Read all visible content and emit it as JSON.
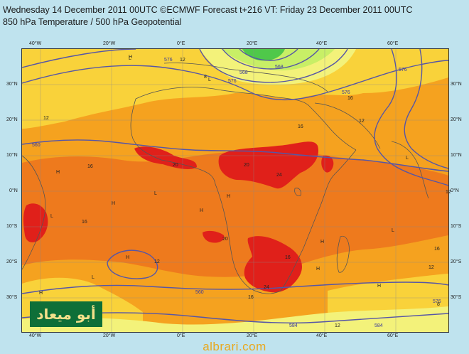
{
  "header": {
    "line1": "Wednesday 14 December 2011 00UTC ©ECMWF Forecast t+216 VT: Friday 23 December 2011 00UTC",
    "line2": "850 hPa Temperature / 500 hPa Geopotential"
  },
  "map": {
    "lon_labels": [
      "40°W",
      "20°W",
      "0°E",
      "20°E",
      "40°E",
      "60°E"
    ],
    "lat_labels": [
      "30°N",
      "20°N",
      "10°N",
      "0°N",
      "10°S",
      "20°S",
      "30°S"
    ],
    "contour_labels": [
      "576",
      "568",
      "560",
      "560",
      "576",
      "576",
      "584",
      "584",
      "568",
      "576",
      "576"
    ],
    "temp_labels": [
      "8",
      "12",
      "12",
      "16",
      "16",
      "16",
      "20",
      "24",
      "24",
      "20",
      "20",
      "16",
      "12",
      "12",
      "16",
      "16",
      "12",
      "8",
      "12",
      "12",
      "16"
    ],
    "hl_labels": [
      "H",
      "H",
      "H",
      "H",
      "H",
      "H",
      "H",
      "H",
      "H",
      "H",
      "L",
      "L",
      "L",
      "L",
      "L",
      "L",
      "L"
    ],
    "colors": {
      "ocean_bg": "#bfe3ee",
      "temp_very_cold": "#4fc84a",
      "temp_cold": "#c8ef66",
      "temp_cool": "#f3f27a",
      "temp_mild": "#f9d23a",
      "temp_warm": "#f5a21f",
      "temp_hot": "#ee7a1d",
      "temp_very_hot": "#e0201a",
      "geopotential_line": "#5656a6",
      "coastline": "#555555"
    }
  },
  "logo": {
    "text": "أبو ميعاد"
  },
  "watermark": "albrari.com"
}
